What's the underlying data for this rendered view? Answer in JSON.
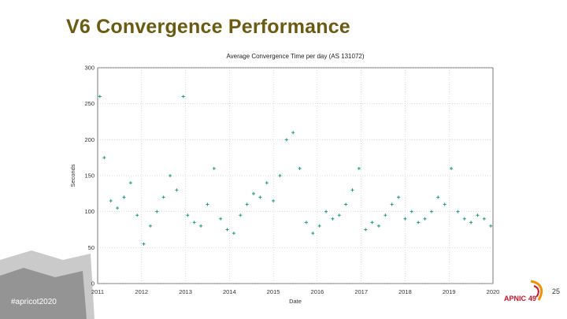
{
  "slide": {
    "title": "V6 Convergence Performance",
    "hashtag": "#apricot2020",
    "logo_text": "APNIC",
    "logo_number": "49",
    "slide_number": "25"
  },
  "colors": {
    "title": "#6b5a12",
    "points": "#1a9a7a",
    "apnic_red": "#c8102e",
    "apnic_orange": "#f39200"
  },
  "chart_data": {
    "type": "scatter",
    "title": "Average Convergence Time per day (AS 131072)",
    "xlabel": "Date",
    "ylabel": "Seconds",
    "xlim": [
      2011,
      2020
    ],
    "ylim": [
      0,
      300
    ],
    "x_ticks": [
      "2011",
      "2012",
      "2013",
      "2014",
      "2015",
      "2016",
      "2017",
      "2018",
      "2019",
      "2020"
    ],
    "y_ticks": [
      0,
      50,
      100,
      150,
      200,
      250,
      300
    ],
    "grid": true,
    "series": [
      {
        "marker": "+",
        "x": [
          2011.05,
          2011.15,
          2011.3,
          2011.45,
          2011.6,
          2011.75,
          2011.9,
          2012.05,
          2012.2,
          2012.35,
          2012.5,
          2012.65,
          2012.8,
          2012.95,
          2013.05,
          2013.2,
          2013.35,
          2013.5,
          2013.65,
          2013.8,
          2013.95,
          2014.1,
          2014.25,
          2014.4,
          2014.55,
          2014.7,
          2014.85,
          2015.0,
          2015.15,
          2015.3,
          2015.45,
          2015.6,
          2015.75,
          2015.9,
          2016.05,
          2016.2,
          2016.35,
          2016.5,
          2016.65,
          2016.8,
          2016.95,
          2017.1,
          2017.25,
          2017.4,
          2017.55,
          2017.7,
          2017.85,
          2018.0,
          2018.15,
          2018.3,
          2018.45,
          2018.6,
          2018.75,
          2018.9,
          2019.05,
          2019.2,
          2019.35,
          2019.5,
          2019.65,
          2019.8,
          2019.95
        ],
        "y": [
          260,
          175,
          115,
          105,
          120,
          140,
          95,
          55,
          80,
          100,
          120,
          150,
          130,
          260,
          95,
          85,
          80,
          110,
          160,
          90,
          75,
          70,
          95,
          110,
          125,
          120,
          140,
          115,
          150,
          200,
          210,
          160,
          85,
          70,
          80,
          100,
          90,
          95,
          110,
          130,
          160,
          75,
          85,
          80,
          95,
          110,
          120,
          90,
          100,
          85,
          90,
          100,
          120,
          110,
          160,
          100,
          90,
          85,
          95,
          90,
          80
        ]
      }
    ]
  }
}
